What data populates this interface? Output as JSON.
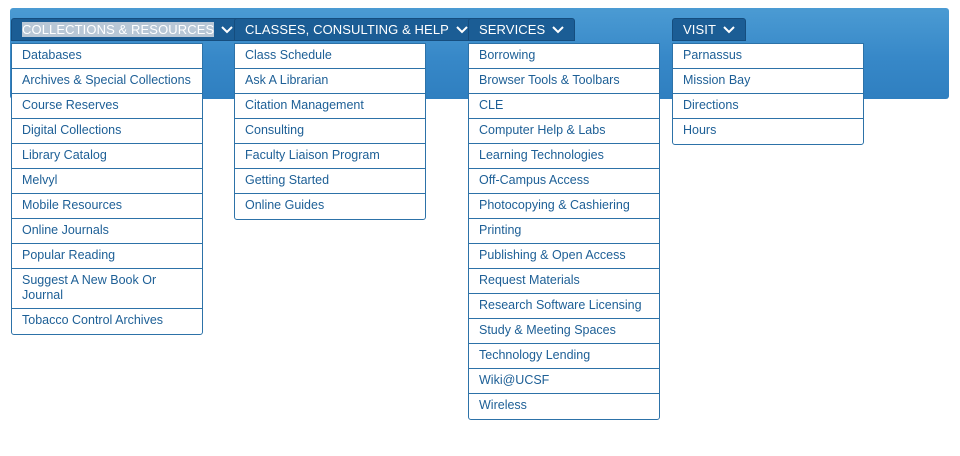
{
  "menus": [
    {
      "title": "COLLECTIONS & RESOURCES",
      "items": [
        "Databases",
        "Archives & Special Collections",
        "Course Reserves",
        "Digital Collections",
        "Library Catalog",
        "Melvyl",
        "Mobile Resources",
        "Online Journals",
        "Popular Reading",
        "Suggest A New Book Or Journal",
        "Tobacco Control Archives"
      ]
    },
    {
      "title": "CLASSES, CONSULTING & HELP",
      "items": [
        "Class Schedule",
        "Ask A Librarian",
        "Citation Management",
        "Consulting",
        "Faculty Liaison Program",
        "Getting Started",
        "Online Guides"
      ]
    },
    {
      "title": "SERVICES",
      "items": [
        "Borrowing",
        "Browser Tools & Toolbars",
        "CLE",
        "Computer Help & Labs",
        "Learning Technologies",
        "Off-Campus Access",
        "Photocopying & Cashiering",
        "Printing",
        "Publishing & Open Access",
        "Request Materials",
        "Research Software Licensing",
        "Study & Meeting Spaces",
        "Technology Lending",
        "Wiki@UCSF",
        "Wireless"
      ]
    },
    {
      "title": "VISIT",
      "items": [
        "Parnassus",
        "Mission Bay",
        "Directions",
        "Hours"
      ]
    }
  ],
  "colors": {
    "banner": "#3788c8",
    "button": "#1b5d95",
    "link": "#1d5f96",
    "border": "#2d72a8"
  },
  "icons": {
    "chevron": "chevron-down-icon"
  }
}
